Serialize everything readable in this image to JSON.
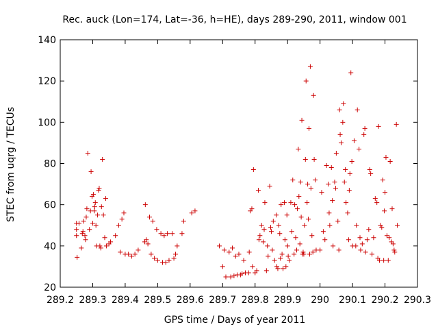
{
  "chart_data": {
    "type": "scatter",
    "title": "Rec. auck (Lon=174, Lat=-36, h=HE), days 289-290, 2011, window 001",
    "xlabel": "GPS time / Days of year 2011",
    "ylabel": "STEC from uqrg / TECUs",
    "xlim": [
      289.2,
      290.3
    ],
    "ylim": [
      20,
      140
    ],
    "x_ticks": [
      289.2,
      289.3,
      289.4,
      289.5,
      289.6,
      289.7,
      289.8,
      289.9,
      290,
      290.1,
      290.2,
      290.3
    ],
    "x_tick_labels": [
      "289.2",
      "289.3",
      "289.4",
      "289.5",
      "289.6",
      "289.7",
      "289.8",
      "289.9",
      "290",
      "290.1",
      "290.2",
      "290.3"
    ],
    "y_ticks": [
      20,
      40,
      60,
      80,
      100,
      120,
      140
    ],
    "y_tick_labels": [
      "20",
      "40",
      "60",
      "80",
      "100",
      "120",
      "140"
    ],
    "grid": false,
    "legend": "none",
    "marker": "+",
    "color": "#cc0000",
    "series": [
      {
        "points": [
          [
            289.25,
            51
          ],
          [
            289.25,
            48
          ],
          [
            289.25,
            45
          ],
          [
            289.252,
            34.5
          ],
          [
            289.258,
            51
          ],
          [
            289.265,
            39
          ],
          [
            289.268,
            46
          ],
          [
            289.27,
            47
          ],
          [
            289.272,
            52
          ],
          [
            289.276,
            45
          ],
          [
            289.278,
            43
          ],
          [
            289.28,
            54
          ],
          [
            289.282,
            58
          ],
          [
            289.285,
            85
          ],
          [
            289.29,
            48
          ],
          [
            289.293,
            57
          ],
          [
            289.295,
            76
          ],
          [
            289.298,
            64
          ],
          [
            289.3,
            51
          ],
          [
            289.302,
            65
          ],
          [
            289.305,
            57
          ],
          [
            289.306,
            59
          ],
          [
            289.308,
            61
          ],
          [
            289.31,
            50
          ],
          [
            289.312,
            40
          ],
          [
            289.315,
            55
          ],
          [
            289.318,
            67
          ],
          [
            289.32,
            68
          ],
          [
            289.322,
            40
          ],
          [
            289.325,
            39
          ],
          [
            289.327,
            59
          ],
          [
            289.33,
            82
          ],
          [
            289.333,
            55
          ],
          [
            289.337,
            44
          ],
          [
            289.34,
            63
          ],
          [
            289.342,
            40
          ],
          [
            289.35,
            41
          ],
          [
            289.355,
            42
          ],
          [
            289.37,
            45
          ],
          [
            289.38,
            50
          ],
          [
            289.385,
            37
          ],
          [
            289.39,
            53
          ],
          [
            289.396,
            56
          ],
          [
            289.4,
            36
          ],
          [
            289.41,
            36
          ],
          [
            289.42,
            35
          ],
          [
            289.43,
            36
          ],
          [
            289.44,
            38
          ],
          [
            289.46,
            42
          ],
          [
            289.462,
            60
          ],
          [
            289.465,
            43
          ],
          [
            289.47,
            41
          ],
          [
            289.475,
            54
          ],
          [
            289.48,
            36
          ],
          [
            289.485,
            52
          ],
          [
            289.49,
            34
          ],
          [
            289.497,
            48
          ],
          [
            289.5,
            33
          ],
          [
            289.51,
            46
          ],
          [
            289.515,
            32
          ],
          [
            289.52,
            45
          ],
          [
            289.525,
            32
          ],
          [
            289.53,
            46
          ],
          [
            289.535,
            33
          ],
          [
            289.545,
            46
          ],
          [
            289.55,
            34
          ],
          [
            289.555,
            36
          ],
          [
            289.56,
            40
          ],
          [
            289.575,
            46
          ],
          [
            289.58,
            52
          ],
          [
            289.605,
            56
          ],
          [
            289.615,
            57
          ],
          [
            289.69,
            40
          ],
          [
            289.7,
            30
          ],
          [
            289.705,
            38
          ],
          [
            289.71,
            25
          ],
          [
            289.72,
            37
          ],
          [
            289.725,
            25
          ],
          [
            289.73,
            39
          ],
          [
            289.735,
            25.5
          ],
          [
            289.74,
            35
          ],
          [
            289.745,
            26
          ],
          [
            289.75,
            36
          ],
          [
            289.755,
            26
          ],
          [
            289.76,
            26.5
          ],
          [
            289.765,
            33
          ],
          [
            289.77,
            27
          ],
          [
            289.78,
            27
          ],
          [
            289.782,
            37
          ],
          [
            289.785,
            57
          ],
          [
            289.79,
            58
          ],
          [
            289.792,
            30
          ],
          [
            289.795,
            77
          ],
          [
            289.8,
            27
          ],
          [
            289.805,
            28
          ],
          [
            289.81,
            67
          ],
          [
            289.812,
            43
          ],
          [
            289.815,
            45
          ],
          [
            289.82,
            50
          ],
          [
            289.825,
            42
          ],
          [
            289.828,
            48
          ],
          [
            289.83,
            61
          ],
          [
            289.835,
            28
          ],
          [
            289.838,
            40
          ],
          [
            289.84,
            35
          ],
          [
            289.845,
            69
          ],
          [
            289.848,
            49
          ],
          [
            289.85,
            47
          ],
          [
            289.853,
            38
          ],
          [
            289.856,
            52
          ],
          [
            289.86,
            33
          ],
          [
            289.865,
            55
          ],
          [
            289.867,
            30
          ],
          [
            289.87,
            29
          ],
          [
            289.873,
            50
          ],
          [
            289.876,
            46
          ],
          [
            289.878,
            34
          ],
          [
            289.88,
            60
          ],
          [
            289.883,
            36
          ],
          [
            289.886,
            29
          ],
          [
            289.89,
            61
          ],
          [
            289.892,
            43
          ],
          [
            289.895,
            30
          ],
          [
            289.898,
            55
          ],
          [
            289.9,
            40
          ],
          [
            289.902,
            35
          ],
          [
            289.905,
            33
          ],
          [
            289.91,
            61
          ],
          [
            289.913,
            47
          ],
          [
            289.916,
            72
          ],
          [
            289.92,
            36
          ],
          [
            289.922,
            60
          ],
          [
            289.925,
            44
          ],
          [
            289.928,
            38
          ],
          [
            289.93,
            58
          ],
          [
            289.933,
            87
          ],
          [
            289.935,
            64
          ],
          [
            289.938,
            41
          ],
          [
            289.94,
            71
          ],
          [
            289.942,
            54
          ],
          [
            289.944,
            101
          ],
          [
            289.946,
            36
          ],
          [
            289.948,
            37
          ],
          [
            289.95,
            36
          ],
          [
            289.952,
            50
          ],
          [
            289.955,
            82
          ],
          [
            289.957,
            120
          ],
          [
            289.96,
            61
          ],
          [
            289.962,
            70
          ],
          [
            289.964,
            53
          ],
          [
            289.966,
            97
          ],
          [
            289.968,
            36
          ],
          [
            289.97,
            127
          ],
          [
            289.972,
            68
          ],
          [
            289.975,
            45
          ],
          [
            289.978,
            37
          ],
          [
            289.98,
            113
          ],
          [
            289.982,
            82
          ],
          [
            289.985,
            72
          ],
          [
            289.988,
            38
          ],
          [
            290.0,
            38
          ],
          [
            290.005,
            66
          ],
          [
            290.01,
            47
          ],
          [
            290.015,
            43
          ],
          [
            290.02,
            79
          ],
          [
            290.025,
            70
          ],
          [
            290.028,
            56
          ],
          [
            290.03,
            50
          ],
          [
            290.035,
            78
          ],
          [
            290.038,
            62
          ],
          [
            290.04,
            40
          ],
          [
            290.045,
            71
          ],
          [
            290.048,
            68
          ],
          [
            290.05,
            85
          ],
          [
            290.055,
            52
          ],
          [
            290.058,
            38
          ],
          [
            290.06,
            106
          ],
          [
            290.062,
            94
          ],
          [
            290.065,
            90
          ],
          [
            290.07,
            100
          ],
          [
            290.072,
            109
          ],
          [
            290.075,
            71
          ],
          [
            290.078,
            77
          ],
          [
            290.08,
            61
          ],
          [
            290.085,
            56
          ],
          [
            290.088,
            43
          ],
          [
            290.09,
            67
          ],
          [
            290.092,
            75
          ],
          [
            290.095,
            124
          ],
          [
            290.098,
            81
          ],
          [
            290.1,
            40
          ],
          [
            290.105,
            91
          ],
          [
            290.11,
            40
          ],
          [
            290.112,
            50
          ],
          [
            290.115,
            106
          ],
          [
            290.12,
            87
          ],
          [
            290.123,
            44
          ],
          [
            290.125,
            38
          ],
          [
            290.13,
            41
          ],
          [
            290.135,
            94
          ],
          [
            290.138,
            97
          ],
          [
            290.14,
            37
          ],
          [
            290.145,
            43
          ],
          [
            290.15,
            48
          ],
          [
            290.153,
            77
          ],
          [
            290.156,
            75
          ],
          [
            290.16,
            36
          ],
          [
            290.165,
            44
          ],
          [
            290.17,
            63
          ],
          [
            290.175,
            61
          ],
          [
            290.178,
            34
          ],
          [
            290.18,
            98
          ],
          [
            290.183,
            33
          ],
          [
            290.186,
            50
          ],
          [
            290.19,
            49
          ],
          [
            290.193,
            72
          ],
          [
            290.196,
            33
          ],
          [
            290.198,
            57
          ],
          [
            290.2,
            66
          ],
          [
            290.203,
            83
          ],
          [
            290.206,
            45
          ],
          [
            290.21,
            33
          ],
          [
            290.213,
            44
          ],
          [
            290.216,
            81
          ],
          [
            290.22,
            42
          ],
          [
            290.222,
            58
          ],
          [
            290.225,
            41
          ],
          [
            290.228,
            38
          ],
          [
            290.23,
            37
          ],
          [
            290.235,
            99
          ],
          [
            290.238,
            50
          ]
        ]
      }
    ]
  }
}
